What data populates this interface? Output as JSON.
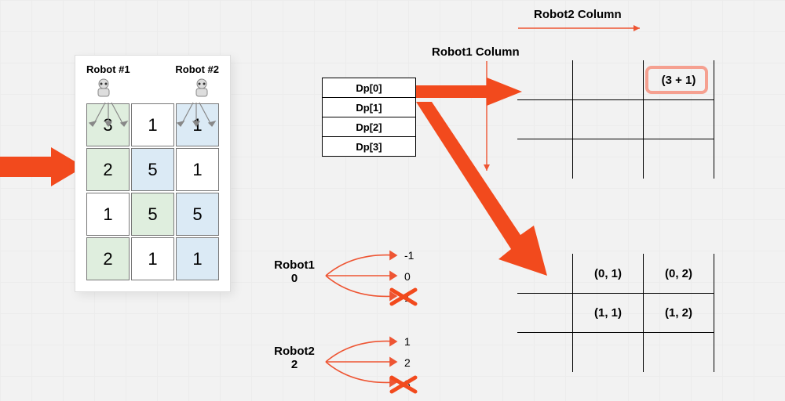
{
  "colors": {
    "arrow_red": "#f24a1d",
    "highlight_ring": "#f5a090",
    "cell_green": "#dfeede",
    "cell_blue": "#dbeaf5",
    "thin_red": "#ee5533",
    "bg": "#f2f2f2"
  },
  "left_grid": {
    "label_left": "Robot #1",
    "label_right": "Robot #2",
    "cells": [
      [
        {
          "v": "3",
          "c": "g"
        },
        {
          "v": "1",
          "c": "w"
        },
        {
          "v": "1",
          "c": "b"
        }
      ],
      [
        {
          "v": "2",
          "c": "g"
        },
        {
          "v": "5",
          "c": "b"
        },
        {
          "v": "1",
          "c": "w"
        }
      ],
      [
        {
          "v": "1",
          "c": "w"
        },
        {
          "v": "5",
          "c": "g"
        },
        {
          "v": "5",
          "c": "b"
        }
      ],
      [
        {
          "v": "2",
          "c": "g"
        },
        {
          "v": "1",
          "c": "w"
        },
        {
          "v": "1",
          "c": "b"
        }
      ]
    ]
  },
  "dp_list": [
    "Dp[0]",
    "Dp[1]",
    "Dp[2]",
    "Dp[3]"
  ],
  "headers": {
    "robot1_col": "Robot1 Column",
    "robot2_col": "Robot2 Column"
  },
  "top_table": {
    "highlight_cell": "(3 + 1)"
  },
  "bottom_table": {
    "r0c1": "(0, 1)",
    "r0c2": "(0, 2)",
    "r1c1": "(1, 1)",
    "r1c2": "(1, 2)"
  },
  "branches": {
    "r1_label": "Robot1",
    "r1_val": "0",
    "r1_opts": [
      "-1",
      "0",
      "1"
    ],
    "r2_label": "Robot2",
    "r2_val": "2",
    "r2_opts": [
      "1",
      "2",
      "3"
    ]
  }
}
